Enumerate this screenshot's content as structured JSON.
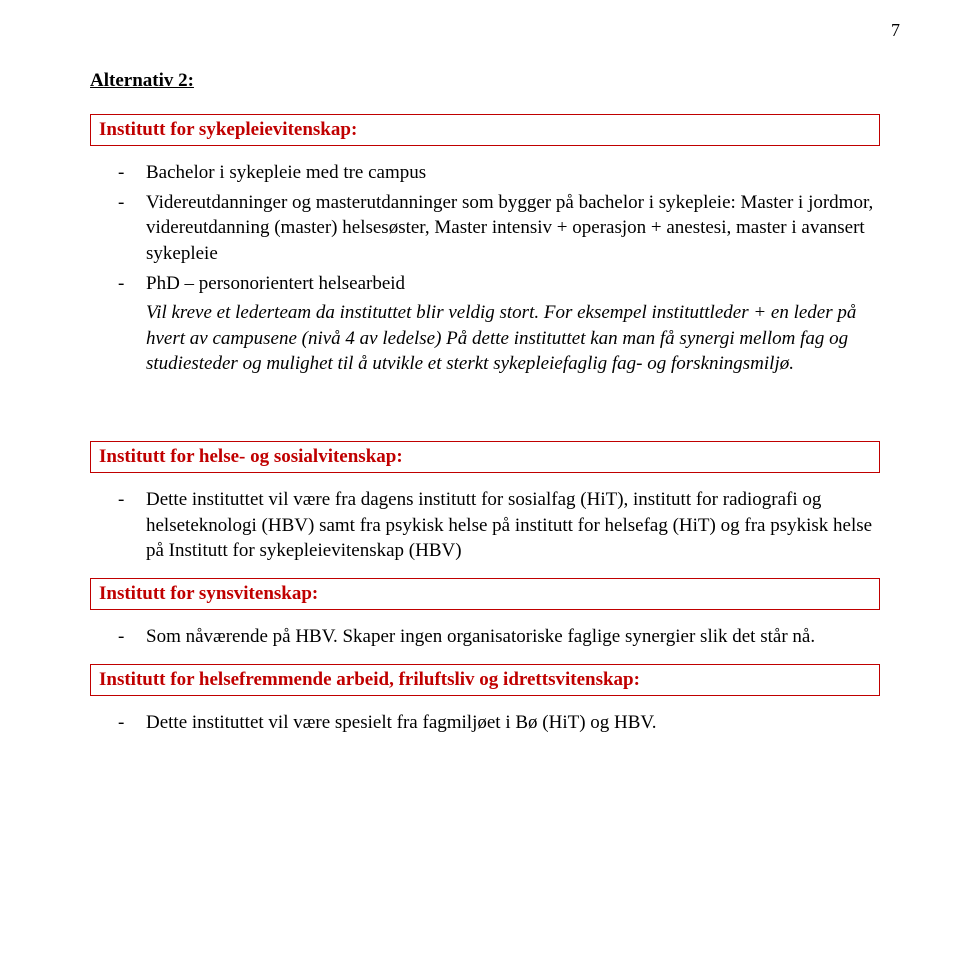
{
  "pageNumber": "7",
  "heading": "Alternativ 2:",
  "box1": {
    "title": "Institutt for sykepleievitenskap:"
  },
  "list1": {
    "item1": "Bachelor i sykepleie med tre campus",
    "item2": "Videreutdanninger og masterutdanninger som bygger på bachelor i sykepleie: Master i jordmor, videreutdanning (master) helsesøster, Master intensiv + operasjon + anestesi, master i avansert sykepleie",
    "item3_lead": "PhD – personorientert helsearbeid",
    "item3_italic": "Vil kreve et lederteam da instituttet blir veldig stort. For eksempel instituttleder + en leder på hvert av campusene (nivå 4 av ledelse)\nPå dette instituttet kan man få synergi mellom fag og studiesteder og mulighet til å utvikle et sterkt sykepleiefaglig fag- og forskningsmiljø."
  },
  "box2": {
    "title": "Institutt for helse- og sosialvitenskap:"
  },
  "list2": {
    "item1": "Dette instituttet vil være fra dagens institutt for sosialfag (HiT), institutt for radiografi og helseteknologi (HBV) samt fra psykisk helse på institutt for helsefag (HiT) og fra psykisk helse på Institutt for sykepleievitenskap (HBV)"
  },
  "box3": {
    "title": "Institutt for synsvitenskap:"
  },
  "list3": {
    "item1": "Som nåværende på HBV. Skaper ingen organisatoriske faglige synergier slik det står nå."
  },
  "box4": {
    "title": "Institutt for helsefremmende arbeid, friluftsliv og idrettsvitenskap:"
  },
  "list4": {
    "item1": "Dette instituttet vil være spesielt fra fagmiljøet i Bø (HiT) og HBV."
  }
}
